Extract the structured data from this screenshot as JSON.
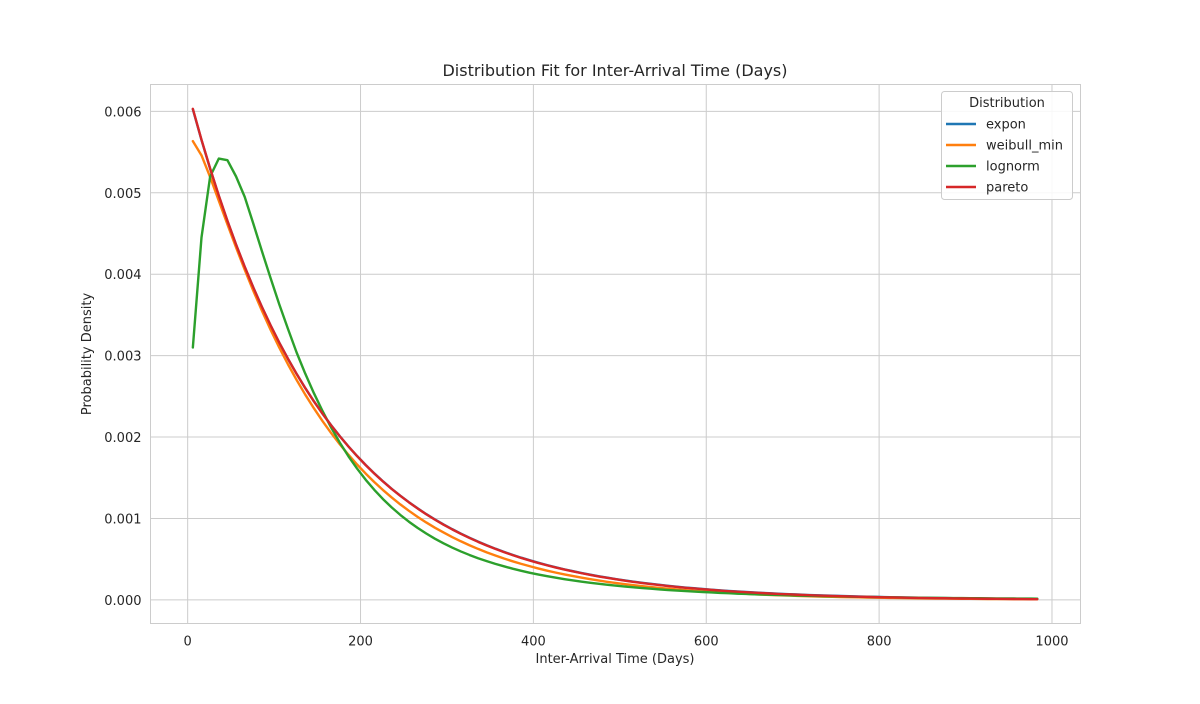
{
  "chart_data": {
    "type": "line",
    "title": "Distribution Fit for Inter-Arrival Time (Days)",
    "xlabel": "Inter-Arrival Time (Days)",
    "ylabel": "Probability Density",
    "xlim": [
      -43,
      1033
    ],
    "ylim": [
      -0.00029,
      0.00633
    ],
    "xticks": [
      0,
      200,
      400,
      600,
      800,
      1000
    ],
    "xtick_labels": [
      "0",
      "200",
      "400",
      "600",
      "800",
      "1000"
    ],
    "yticks": [
      0.0,
      0.001,
      0.002,
      0.003,
      0.004,
      0.005,
      0.006
    ],
    "ytick_labels": [
      "0.000",
      "0.001",
      "0.002",
      "0.003",
      "0.004",
      "0.005",
      "0.006"
    ],
    "grid": true,
    "legend": {
      "title": "Distribution",
      "position": "top-right"
    },
    "series": [
      {
        "name": "expon",
        "color": "#1f77b4",
        "x": [
          6,
          16,
          26,
          36,
          46,
          56,
          66,
          76,
          86,
          96,
          106,
          116,
          126,
          136,
          146,
          156,
          166,
          176,
          186,
          196,
          206,
          216,
          226,
          236,
          246,
          256,
          266,
          276,
          286,
          296,
          306,
          316,
          326,
          336,
          346,
          356,
          366,
          376,
          386,
          396,
          406,
          416,
          426,
          436,
          446,
          456,
          466,
          476,
          486,
          496,
          506,
          516,
          526,
          536,
          546,
          556,
          566,
          576,
          586,
          596,
          606,
          616,
          626,
          636,
          646,
          656,
          666,
          676,
          686,
          696,
          706,
          716,
          726,
          736,
          746,
          756,
          766,
          776,
          786,
          796,
          806,
          816,
          826,
          836,
          846,
          856,
          866,
          876,
          886,
          896,
          906,
          916,
          926,
          936,
          946,
          956,
          966,
          976,
          983
        ],
        "y": [
          0.006025,
          0.005648,
          0.005295,
          0.004964,
          0.004654,
          0.004363,
          0.00409,
          0.003835,
          0.003595,
          0.00337,
          0.003159,
          0.002962,
          0.002777,
          0.002603,
          0.00244,
          0.002288,
          0.002145,
          0.002011,
          0.001885,
          0.001767,
          0.001657,
          0.001553,
          0.001456,
          0.001365,
          0.00128,
          0.0012,
          0.001125,
          0.001054,
          0.000989,
          0.000927,
          0.000869,
          0.000815,
          0.000764,
          0.000716,
          0.000671,
          0.000629,
          0.00059,
          0.000553,
          0.000518,
          0.000486,
          0.000456,
          0.000427,
          0.0004,
          0.000375,
          0.000352,
          0.00033,
          0.000309,
          0.00029,
          0.000272,
          0.000255,
          0.000239,
          0.000224,
          0.00021,
          0.000197,
          0.000185,
          0.000173,
          0.000162,
          0.000152,
          0.000143,
          0.000134,
          0.000125,
          0.000118,
          0.00011,
          0.000103,
          9.7e-05,
          9.1e-05,
          8.5e-05,
          8e-05,
          7.5e-05,
          7e-05,
          6.6e-05,
          6.1e-05,
          5.8e-05,
          5.4e-05,
          5.1e-05,
          4.8e-05,
          4.5e-05,
          4.2e-05,
          3.9e-05,
          3.7e-05,
          3.4e-05,
          3.2e-05,
          3e-05,
          2.8e-05,
          2.7e-05,
          2.5e-05,
          2.3e-05,
          2.2e-05,
          2.1e-05,
          1.9e-05,
          1.8e-05,
          1.7e-05,
          1.6e-05,
          1.5e-05,
          1.4e-05,
          1.3e-05,
          1.2e-05,
          1.2e-05,
          1.1e-05
        ]
      },
      {
        "name": "weibull_min",
        "color": "#ff7f0e",
        "x": [
          6,
          16,
          26,
          36,
          46,
          56,
          66,
          76,
          86,
          96,
          106,
          116,
          126,
          136,
          146,
          156,
          166,
          176,
          186,
          196,
          206,
          216,
          226,
          236,
          246,
          256,
          266,
          276,
          286,
          296,
          306,
          316,
          326,
          336,
          346,
          356,
          366,
          376,
          386,
          396,
          406,
          416,
          426,
          436,
          446,
          456,
          466,
          476,
          486,
          496,
          506,
          516,
          526,
          536,
          546,
          556,
          566,
          576,
          586,
          596,
          606,
          616,
          626,
          636,
          646,
          656,
          666,
          676,
          686,
          696,
          706,
          716,
          726,
          736,
          746,
          756,
          766,
          776,
          786,
          796,
          806,
          816,
          826,
          836,
          846,
          856,
          866,
          876,
          886,
          896,
          906,
          916,
          926,
          936,
          946,
          956,
          966,
          976,
          983
        ],
        "y": [
          0.005634,
          0.00546,
          0.005193,
          0.004903,
          0.004612,
          0.004328,
          0.004055,
          0.003795,
          0.003549,
          0.003317,
          0.003099,
          0.002894,
          0.002702,
          0.002522,
          0.002354,
          0.002196,
          0.002049,
          0.001911,
          0.001783,
          0.001663,
          0.001551,
          0.001446,
          0.001349,
          0.001258,
          0.001173,
          0.001094,
          0.00102,
          0.000951,
          0.000887,
          0.000828,
          0.000772,
          0.00072,
          0.000671,
          0.000626,
          0.000584,
          0.000545,
          0.000508,
          0.000474,
          0.000442,
          0.000413,
          0.000385,
          0.000359,
          0.000335,
          0.000313,
          0.000292,
          0.000272,
          0.000254,
          0.000237,
          0.000221,
          0.000207,
          0.000193,
          0.00018,
          0.000168,
          0.000157,
          0.000146,
          0.000137,
          0.000128,
          0.000119,
          0.000111,
          0.000104,
          9.7e-05,
          9.1e-05,
          8.5e-05,
          7.9e-05,
          7.4e-05,
          6.9e-05,
          6.4e-05,
          6e-05,
          5.6e-05,
          5.3e-05,
          4.9e-05,
          4.6e-05,
          4.3e-05,
          4e-05,
          3.8e-05,
          3.5e-05,
          3.3e-05,
          3.1e-05,
          2.9e-05,
          2.7e-05,
          2.5e-05,
          2.4e-05,
          2.2e-05,
          2.1e-05,
          1.9e-05,
          1.8e-05,
          1.7e-05,
          1.6e-05,
          1.5e-05,
          1.4e-05,
          1.3e-05,
          1.2e-05,
          1.1e-05,
          1.1e-05,
          1e-05,
          9e-06,
          9e-06,
          8e-06,
          8e-06
        ]
      },
      {
        "name": "lognorm",
        "color": "#2ca02c",
        "x": [
          6,
          16,
          26,
          36,
          46,
          56,
          66,
          76,
          86,
          96,
          106,
          116,
          126,
          136,
          146,
          156,
          166,
          176,
          186,
          196,
          206,
          216,
          226,
          236,
          246,
          256,
          266,
          276,
          286,
          296,
          306,
          316,
          326,
          336,
          346,
          356,
          366,
          376,
          386,
          396,
          406,
          416,
          426,
          436,
          446,
          456,
          466,
          476,
          486,
          496,
          506,
          516,
          526,
          536,
          546,
          556,
          566,
          576,
          586,
          596,
          606,
          616,
          626,
          636,
          646,
          656,
          666,
          676,
          686,
          696,
          706,
          716,
          726,
          736,
          746,
          756,
          766,
          776,
          786,
          796,
          806,
          816,
          826,
          836,
          846,
          856,
          866,
          876,
          886,
          896,
          906,
          916,
          926,
          936,
          946,
          956,
          966,
          976,
          983
        ],
        "y": [
          0.0031,
          0.00445,
          0.0052,
          0.00542,
          0.0054,
          0.0052,
          0.00495,
          0.00462,
          0.00428,
          0.00395,
          0.00363,
          0.00333,
          0.00304,
          0.00278,
          0.00254,
          0.00232,
          0.002117,
          0.001932,
          0.001764,
          0.001613,
          0.001475,
          0.001351,
          0.001238,
          0.001136,
          0.001044,
          0.00096,
          0.000884,
          0.000815,
          0.000752,
          0.000695,
          0.000643,
          0.000595,
          0.000552,
          0.000512,
          0.000476,
          0.000442,
          0.000412,
          0.000383,
          0.000357,
          0.000333,
          0.000311,
          0.000291,
          0.000272,
          0.000255,
          0.000239,
          0.000224,
          0.00021,
          0.000197,
          0.000185,
          0.000174,
          0.000164,
          0.000154,
          0.000145,
          0.000137,
          0.000129,
          0.000121,
          0.000115,
          0.000108,
          0.000102,
          9.7e-05,
          9.1e-05,
          8.6e-05,
          8.2e-05,
          7.7e-05,
          7.3e-05,
          6.9e-05,
          6.6e-05,
          6.2e-05,
          5.9e-05,
          5.6e-05,
          5.3e-05,
          5.1e-05,
          4.8e-05,
          4.6e-05,
          4.4e-05,
          4.2e-05,
          4e-05,
          3.8e-05,
          3.6e-05,
          3.4e-05,
          3.3e-05,
          3.1e-05,
          3e-05,
          2.8e-05,
          2.7e-05,
          2.6e-05,
          2.5e-05,
          2.4e-05,
          2.3e-05,
          2.2e-05,
          2.1e-05,
          2e-05,
          1.9e-05,
          1.8e-05,
          1.8e-05,
          1.7e-05,
          1.6e-05,
          1.6e-05,
          1.5e-05
        ]
      },
      {
        "name": "pareto",
        "color": "#d62728",
        "x": [
          6,
          16,
          26,
          36,
          46,
          56,
          66,
          76,
          86,
          96,
          106,
          116,
          126,
          136,
          146,
          156,
          166,
          176,
          186,
          196,
          206,
          216,
          226,
          236,
          246,
          256,
          266,
          276,
          286,
          296,
          306,
          316,
          326,
          336,
          346,
          356,
          366,
          376,
          386,
          396,
          406,
          416,
          426,
          436,
          446,
          456,
          466,
          476,
          486,
          496,
          506,
          516,
          526,
          536,
          546,
          556,
          566,
          576,
          586,
          596,
          606,
          616,
          626,
          636,
          646,
          656,
          666,
          676,
          686,
          696,
          706,
          716,
          726,
          736,
          746,
          756,
          766,
          776,
          786,
          796,
          806,
          816,
          826,
          836,
          846,
          856,
          866,
          876,
          886,
          896,
          906,
          916,
          926,
          936,
          946,
          956,
          966,
          976,
          983
        ],
        "y": [
          0.006031,
          0.005652,
          0.005298,
          0.004967,
          0.004656,
          0.004365,
          0.004092,
          0.003836,
          0.003596,
          0.003371,
          0.003159,
          0.002962,
          0.002776,
          0.002602,
          0.002439,
          0.002287,
          0.002144,
          0.00201,
          0.001884,
          0.001766,
          0.001655,
          0.001551,
          0.001454,
          0.001363,
          0.001278,
          0.001198,
          0.001123,
          0.001052,
          0.000986,
          0.000924,
          0.000866,
          0.000812,
          0.000761,
          0.000713,
          0.000668,
          0.000626,
          0.000587,
          0.00055,
          0.000515,
          0.000483,
          0.000452,
          0.000424,
          0.000397,
          0.000372,
          0.000349,
          0.000327,
          0.000306,
          0.000287,
          0.000269,
          0.000252,
          0.000236,
          0.000221,
          0.000207,
          0.000194,
          0.000182,
          0.00017,
          0.000159,
          0.000149,
          0.00014,
          0.000131,
          0.000123,
          0.000115,
          0.000107,
          0.000101,
          9.4e-05,
          8.8e-05,
          8.3e-05,
          7.7e-05,
          7.2e-05,
          6.8e-05,
          6.3e-05,
          5.9e-05,
          5.5e-05,
          5.2e-05,
          4.8e-05,
          4.5e-05,
          4.2e-05,
          3.9e-05,
          3.7e-05,
          3.4e-05,
          3.2e-05,
          3e-05,
          2.8e-05,
          2.6e-05,
          2.4e-05,
          2.3e-05,
          2.1e-05,
          2e-05,
          1.8e-05,
          1.7e-05,
          1.6e-05,
          1.5e-05,
          1.4e-05,
          1.3e-05,
          1.2e-05,
          1.1e-05,
          1e-05,
          9e-06,
          9e-06
        ]
      }
    ]
  }
}
